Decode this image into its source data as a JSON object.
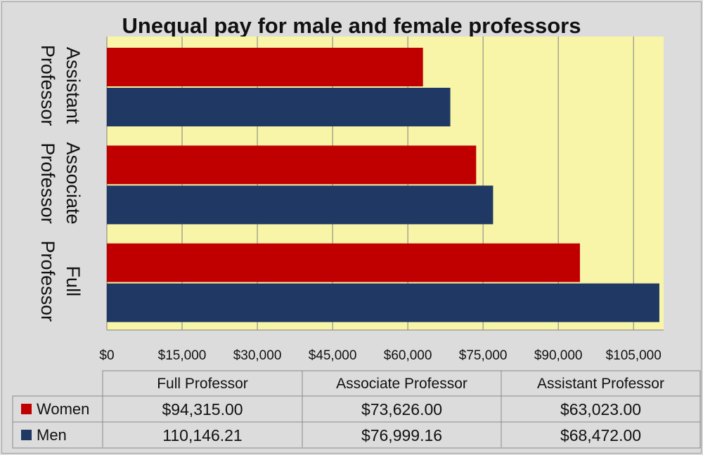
{
  "chart_data": {
    "type": "bar",
    "orientation": "horizontal",
    "title": "Unequal pay for male and female professors",
    "categories": [
      "Assistant Professor",
      "Associate Professor",
      "Full Professor"
    ],
    "category_lines": [
      [
        "Assistant",
        "Professor"
      ],
      [
        "Associate",
        "Professor"
      ],
      [
        "Full",
        "Professor"
      ]
    ],
    "series": [
      {
        "name": "Women",
        "color": "#c00000",
        "values": [
          63023.0,
          73626.0,
          94315.0
        ]
      },
      {
        "name": "Men",
        "color": "#1f3864",
        "values": [
          68472.0,
          76999.16,
          110146.21
        ]
      }
    ],
    "xlim": [
      0,
      111000
    ],
    "xticks": [
      0,
      15000,
      30000,
      45000,
      60000,
      75000,
      90000,
      105000
    ],
    "xtick_labels": [
      "$0",
      "$15,000",
      "$30,000",
      "$45,000",
      "$60,000",
      "$75,000",
      "$90,000",
      "$105,000"
    ],
    "grid": "vertical",
    "plot_background": "#f8f5a8",
    "data_table": {
      "headers": [
        "Full Professor",
        "Associate Professor",
        "Assistant Professor"
      ],
      "rows": [
        {
          "name": "Women",
          "color": "#c00000",
          "cells": [
            "$94,315.00",
            "$73,626.00",
            "$63,023.00"
          ]
        },
        {
          "name": "Men",
          "color": "#1f3864",
          "cells": [
            "110,146.21",
            "$76,999.16",
            "$68,472.00"
          ]
        }
      ]
    }
  }
}
